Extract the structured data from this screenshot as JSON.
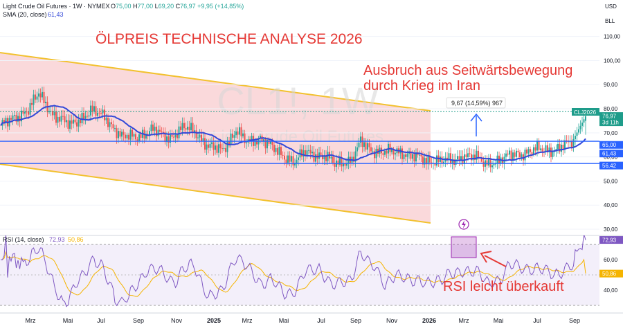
{
  "header": {
    "symbol_line": "Light Crude Oil Futures · 1W · NYMEX",
    "ohlc": [
      {
        "k": "O",
        "v": "75,00"
      },
      {
        "k": "H",
        "v": "77,00"
      },
      {
        "k": "L",
        "v": "69,20"
      },
      {
        "k": "C",
        "v": "76,97"
      }
    ],
    "change": "+9,95 (+14,85%)",
    "sma_label": "SMA (20, close)",
    "sma_value": "61,43"
  },
  "currency": "USD",
  "scale_unit": "BLL",
  "watermark": {
    "big": "CL1!, 1W",
    "small": "Light Crude Oil Futures"
  },
  "annotations": {
    "title": "ÖLPREIS TECHNISCHE ANALYSE 2026",
    "breakout_line1": "Ausbruch aus Seitwärtsbewegung",
    "breakout_line2": "durch Krieg im Iran",
    "measure": "9,67 (14,59%) 967",
    "rsi_note": "RSI leicht überkauft"
  },
  "price_badges": [
    {
      "label": "76,97",
      "sub": "3d 11h",
      "color": "#1e9c8a"
    },
    {
      "label": "65,00",
      "color": "#2962ff"
    },
    {
      "label": "61,43",
      "color": "#2962ff"
    },
    {
      "label": "56,42",
      "color": "#2962ff"
    }
  ],
  "ticker_badge": "CLJ2026",
  "rsi_header": {
    "label": "RSI (14, close)",
    "value": "72,93",
    "ma": "50,86"
  },
  "rsi_badges": [
    {
      "label": "72,93",
      "color": "#7e57c2"
    },
    {
      "label": "50,86",
      "color": "#f5b400"
    }
  ],
  "colors": {
    "up": "#26a69a",
    "down": "#ef5350",
    "sma": "#3247d8",
    "channel": "#f2c12e",
    "level": "#2962ff",
    "annotation": "#e53935",
    "rsi": "#7e57c2",
    "rsi_ma": "#f5b400"
  },
  "chart_data": [
    {
      "type": "candlestick",
      "title": "Light Crude Oil Futures · 1W · NYMEX",
      "timeframe": "1W",
      "x_ticks": [
        "Mrz",
        "Mai",
        "Jul",
        "Sep",
        "Nov",
        "2025",
        "Mrz",
        "Mai",
        "Jul",
        "Sep",
        "Nov",
        "2026",
        "Mrz",
        "Mai",
        "Jul",
        "Sep"
      ],
      "y_ticks": [
        30,
        40,
        50,
        60,
        70,
        80,
        90,
        100,
        110
      ],
      "ylim": [
        28,
        117
      ],
      "series": [
        {
          "name": "Light Crude Oil Futures",
          "kind": "ohlc",
          "last": {
            "open": 75.0,
            "high": 77.0,
            "low": 69.2,
            "close": 76.97
          }
        },
        {
          "name": "SMA (20, close)",
          "kind": "line",
          "last": 61.43
        }
      ],
      "horizontal_levels": [
        65.0,
        61.43,
        56.42
      ],
      "channel": {
        "upper_start": 85.0,
        "upper_end": 76.0,
        "lower_start": 60.0,
        "lower_end": 32.0
      }
    },
    {
      "type": "line",
      "title": "RSI (14, close)",
      "y_ticks": [
        40,
        60
      ],
      "ylim": [
        33,
        83
      ],
      "overbought": 70,
      "oversold": 30,
      "series": [
        {
          "name": "RSI",
          "last": 72.93
        },
        {
          "name": "RSI MA",
          "last": 50.86
        }
      ]
    }
  ]
}
